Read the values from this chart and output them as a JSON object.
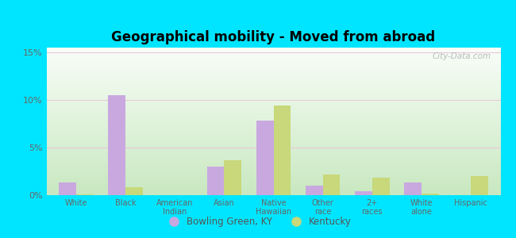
{
  "title": "Geographical mobility - Moved from abroad",
  "categories": [
    "White",
    "Black",
    "American\nIndian",
    "Asian",
    "Native\nHawaiian",
    "Other\nrace",
    "2+\nraces",
    "White\nalone",
    "Hispanic"
  ],
  "bowling_green": [
    1.3,
    10.5,
    0.0,
    3.0,
    7.8,
    1.0,
    0.4,
    1.3,
    0.0
  ],
  "kentucky": [
    0.1,
    0.8,
    0.0,
    3.7,
    9.4,
    2.2,
    1.8,
    0.2,
    2.0
  ],
  "bar_color_bowling": "#c9a8e0",
  "bar_color_kentucky": "#c8d87a",
  "ylim": [
    0,
    0.155
  ],
  "yticks": [
    0.0,
    0.05,
    0.1,
    0.15
  ],
  "ytick_labels": [
    "0%",
    "5%",
    "10%",
    "15%"
  ],
  "bg_color_outer": "#00e5ff",
  "grad_top": "#f8fdf8",
  "grad_bottom": "#c8e8c0",
  "legend_bowling": "Bowling Green, KY",
  "legend_kentucky": "Kentucky",
  "watermark": "City-Data.com"
}
